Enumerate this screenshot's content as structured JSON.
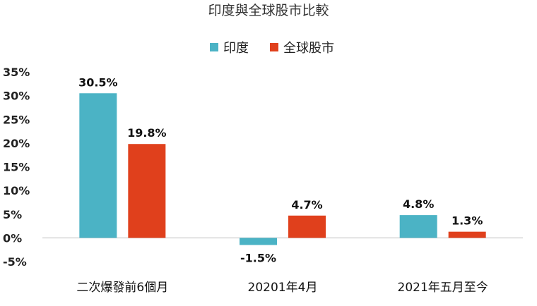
{
  "chart_data": {
    "type": "bar",
    "title": "印度與全球股市比較",
    "categories": [
      "二次爆發前6個月",
      "20201年4月",
      "2021年五月至今"
    ],
    "series": [
      {
        "name": "印度",
        "values": [
          30.5,
          -1.5,
          4.8
        ],
        "labels": [
          "30.5%",
          "-1.5%",
          "4.8%"
        ],
        "color": "#4bb3c5"
      },
      {
        "name": "全球股市",
        "values": [
          19.8,
          4.7,
          1.3
        ],
        "labels": [
          "19.8%",
          "4.7%",
          "1.3%"
        ],
        "color": "#e0401c"
      }
    ],
    "yticks": [
      "35%",
      "30%",
      "25%",
      "20%",
      "15%",
      "10%",
      "5%",
      "0%",
      "-5%"
    ],
    "ytick_values": [
      35,
      30,
      25,
      20,
      15,
      10,
      5,
      0,
      -5
    ],
    "ylim": [
      -5,
      35
    ],
    "grid": false,
    "legend_position": "top-center"
  }
}
